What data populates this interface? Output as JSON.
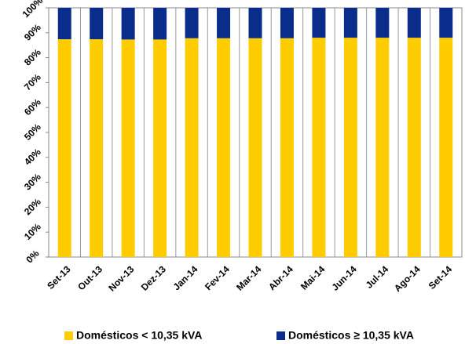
{
  "chart_data": {
    "type": "stacked_bar",
    "categories": [
      "Set-13",
      "Out-13",
      "Nov-13",
      "Dez-13",
      "Jan-14",
      "Fev-14",
      "Mar-14",
      "Abr-14",
      "Mai-14",
      "Jun-14",
      "Jul-14",
      "Ago-14",
      "Set-14"
    ],
    "series": [
      {
        "name": "Domésticos < 10,35 kVA",
        "color": "#ffcc00",
        "values": [
          87.4,
          87.4,
          87.3,
          87.3,
          87.8,
          87.8,
          87.8,
          87.8,
          88,
          88,
          88,
          88,
          88
        ]
      },
      {
        "name": "Domésticos ≥ 10,35 kVA",
        "color": "#0a2d8c",
        "values": [
          12.6,
          12.6,
          12.7,
          12.7,
          12.2,
          12.2,
          12.2,
          12.2,
          12,
          12,
          12,
          12,
          12
        ]
      }
    ],
    "ylim": [
      0,
      100
    ],
    "yticks": [
      {
        "value": 0,
        "label": "0%"
      },
      {
        "value": 10,
        "label": "10%"
      },
      {
        "value": 20,
        "label": "20%"
      },
      {
        "value": 30,
        "label": "30%"
      },
      {
        "value": 40,
        "label": "40%"
      },
      {
        "value": 50,
        "label": "50%"
      },
      {
        "value": 60,
        "label": "60%"
      },
      {
        "value": 70,
        "label": "70%"
      },
      {
        "value": 80,
        "label": "80%"
      },
      {
        "value": 90,
        "label": "90%"
      },
      {
        "value": 100,
        "label": "100%"
      }
    ],
    "legend": "bottom"
  }
}
